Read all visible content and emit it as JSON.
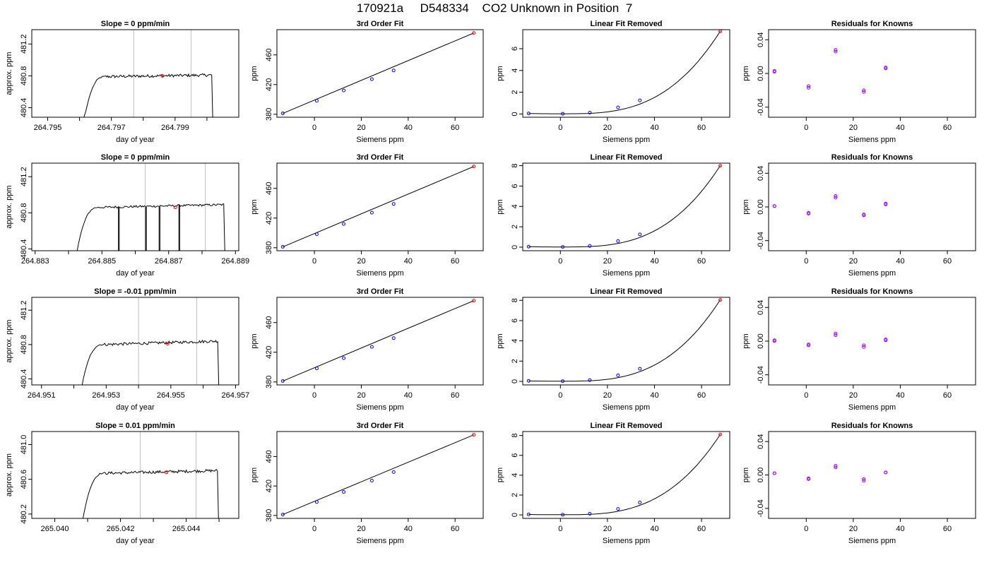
{
  "figure_title": "170921a     D548334    CO2 Unknown in Position  7",
  "colors": {
    "line": "#000000",
    "known_point": "#0000ff",
    "unknown_point": "#ff0000",
    "residual_point": "#9900ff",
    "window_line": "#bebebe"
  },
  "chart_data": [
    {
      "type": "line",
      "title": "Slope =  0  ppm/min",
      "xlabel": "day of year",
      "ylabel": "approx. ppm",
      "xlim": [
        264.7945,
        264.801
      ],
      "ylim": [
        480.28,
        481.38
      ],
      "xticks": [
        264.795,
        264.797,
        264.799
      ],
      "xtick_labels": [
        "264.795",
        "264.797",
        "264.799"
      ],
      "xticks_minor": [
        264.796,
        264.798,
        264.8
      ],
      "yticks": [
        480.4,
        480.8,
        481.2
      ],
      "ytick_labels": [
        "480.4",
        "480.8",
        "481.2"
      ],
      "window": [
        264.7977,
        264.7995
      ],
      "trace": {
        "x0": 264.7959,
        "x_rise": 264.7962,
        "x_plateau": 264.7968,
        "x_drop": 264.80015,
        "x1": 264.8002,
        "plateau_level": 480.79,
        "plateau_end": 480.81,
        "noise": 0.018,
        "dips": []
      },
      "marker": {
        "x": 264.7986,
        "y": 480.8
      }
    },
    {
      "type": "scatter",
      "title": "3rd Order Fit",
      "xlabel": "Siemens ppm",
      "ylabel": "ppm",
      "xlim": [
        -16,
        72
      ],
      "ylim": [
        376,
        494
      ],
      "xticks": [
        0,
        20,
        40,
        60
      ],
      "yticks": [
        380,
        420,
        460
      ],
      "knowns": {
        "x": [
          -13.5,
          1,
          12.5,
          24.5,
          33.8
        ],
        "y": [
          381.2,
          398.3,
          412.0,
          427.3,
          439.0
        ]
      },
      "unknown": {
        "x": 68,
        "y": 489.5
      },
      "fit": {
        "x": [
          -13.5,
          68
        ],
        "y": [
          381.2,
          489.5
        ]
      }
    },
    {
      "type": "scatter",
      "title": "Linear Fit Removed",
      "xlabel": "Siemens ppm",
      "ylabel": "ppm",
      "xlim": [
        -16,
        72
      ],
      "ylim": [
        -0.3,
        7.75
      ],
      "xticks": [
        0,
        20,
        40,
        60
      ],
      "yticks": [
        0,
        2,
        4,
        6
      ],
      "knowns": {
        "x": [
          -13.5,
          1,
          12.5,
          24.5,
          33.8
        ],
        "y": [
          0.05,
          0.02,
          0.12,
          0.6,
          1.25
        ]
      },
      "unknown": {
        "x": 68,
        "y": 7.6
      },
      "fit": {
        "x_start": -13.5,
        "x_end": 68,
        "y_start": 0.05,
        "y_end": 7.6,
        "x_min": 1
      }
    },
    {
      "type": "scatter",
      "title": "Residuals for Knowns",
      "xlabel": "Siemens ppm",
      "ylabel": "ppm",
      "xlim": [
        -16,
        72
      ],
      "ylim": [
        -0.052,
        0.052
      ],
      "xticks": [
        0,
        20,
        40,
        60
      ],
      "yticks": [
        -0.04,
        0.0,
        0.04
      ],
      "ytick_labels": [
        "-0.04",
        "0.00",
        "0.04"
      ],
      "points": {
        "x": [
          -13.5,
          -13.5,
          1,
          1,
          12.5,
          12.5,
          24.5,
          24.5,
          33.8,
          33.8
        ],
        "y": [
          0.003,
          0.002,
          -0.015,
          -0.017,
          0.028,
          0.026,
          -0.02,
          -0.022,
          0.007,
          0.006
        ]
      }
    },
    {
      "type": "line",
      "title": "Slope =  0  ppm/min",
      "xlabel": "day of year",
      "ylabel": "approx. ppm",
      "xlim": [
        264.8829,
        264.8891
      ],
      "ylim": [
        480.38,
        481.35
      ],
      "xticks": [
        264.883,
        264.885,
        264.887,
        264.889
      ],
      "xtick_labels": [
        "264.883",
        "264.885",
        "264.887",
        "264.889"
      ],
      "xticks_minor": [
        264.884,
        264.886,
        264.888
      ],
      "yticks": [
        480.4,
        480.8,
        481.2
      ],
      "ytick_labels": [
        "480.4",
        "480.8",
        "481.2"
      ],
      "window": [
        264.8863,
        264.8881
      ],
      "trace": {
        "x0": 264.8841,
        "x_rise": 264.8843,
        "x_plateau": 264.8849,
        "x_drop": 264.88865,
        "x1": 264.8887,
        "plateau_level": 480.86,
        "plateau_end": 480.89,
        "noise": 0.012,
        "dips": [
          264.8855,
          264.8863,
          264.8867,
          264.8873
        ]
      },
      "marker": {
        "x": 264.8872,
        "y": 480.86
      }
    },
    {
      "type": "scatter",
      "title": "3rd Order Fit",
      "xlabel": "Siemens ppm",
      "ylabel": "ppm",
      "xlim": [
        -16,
        72
      ],
      "ylim": [
        376,
        494
      ],
      "xticks": [
        0,
        20,
        40,
        60
      ],
      "yticks": [
        380,
        420,
        460
      ],
      "knowns": {
        "x": [
          -13.5,
          1,
          12.5,
          24.5,
          33.8
        ],
        "y": [
          381.2,
          398.3,
          412.0,
          427.3,
          439.0
        ]
      },
      "unknown": {
        "x": 68,
        "y": 489.5
      },
      "fit": {
        "x": [
          -13.5,
          68
        ],
        "y": [
          381.2,
          489.5
        ]
      }
    },
    {
      "type": "scatter",
      "title": "Linear Fit Removed",
      "xlabel": "Siemens ppm",
      "ylabel": "ppm",
      "xlim": [
        -16,
        72
      ],
      "ylim": [
        -0.35,
        8.25
      ],
      "xticks": [
        0,
        20,
        40,
        60
      ],
      "yticks": [
        0,
        2,
        4,
        6,
        8
      ],
      "knowns": {
        "x": [
          -13.5,
          1,
          12.5,
          24.5,
          33.8
        ],
        "y": [
          0.05,
          0.02,
          0.12,
          0.6,
          1.25
        ]
      },
      "unknown": {
        "x": 68,
        "y": 8.0
      },
      "fit": {
        "x_start": -13.5,
        "x_end": 68,
        "y_start": 0.05,
        "y_end": 8.0,
        "x_min": 1
      }
    },
    {
      "type": "scatter",
      "title": "Residuals for Knowns",
      "xlabel": "Siemens ppm",
      "ylabel": "ppm",
      "xlim": [
        -16,
        72
      ],
      "ylim": [
        -0.052,
        0.052
      ],
      "xticks": [
        0,
        20,
        40,
        60
      ],
      "yticks": [
        -0.04,
        0.0,
        0.04
      ],
      "ytick_labels": [
        "-0.04",
        "0.00",
        "0.04"
      ],
      "points": {
        "x": [
          -13.5,
          -13.5,
          1,
          1,
          12.5,
          12.5,
          24.5,
          24.5,
          33.8,
          33.8
        ],
        "y": [
          0.001,
          0.001,
          -0.007,
          -0.008,
          0.013,
          0.011,
          -0.009,
          -0.01,
          0.004,
          0.003
        ]
      }
    },
    {
      "type": "line",
      "title": "Slope =  -0.01  ppm/min",
      "xlabel": "day of year",
      "ylabel": "approx. ppm",
      "xlim": [
        264.9507,
        264.9571
      ],
      "ylim": [
        480.33,
        481.35
      ],
      "xticks": [
        264.951,
        264.953,
        264.955,
        264.957
      ],
      "xtick_labels": [
        "264.951",
        "264.953",
        "264.955",
        "264.957"
      ],
      "xticks_minor": [
        264.952,
        264.954,
        264.956
      ],
      "yticks": [
        480.4,
        480.8,
        481.2
      ],
      "ytick_labels": [
        "480.4",
        "480.8",
        "481.2"
      ],
      "window": [
        264.954,
        264.9558
      ],
      "trace": {
        "x0": 264.9521,
        "x_rise": 264.9523,
        "x_plateau": 264.9529,
        "x_drop": 264.95645,
        "x1": 264.9565,
        "plateau_level": 480.8,
        "plateau_end": 480.84,
        "noise": 0.016,
        "dips": []
      },
      "marker": {
        "x": 264.9549,
        "y": 480.81
      }
    },
    {
      "type": "scatter",
      "title": "3rd Order Fit",
      "xlabel": "Siemens ppm",
      "ylabel": "ppm",
      "xlim": [
        -16,
        72
      ],
      "ylim": [
        376,
        494
      ],
      "xticks": [
        0,
        20,
        40,
        60
      ],
      "yticks": [
        380,
        420,
        460
      ],
      "knowns": {
        "x": [
          -13.5,
          1,
          12.5,
          24.5,
          33.8
        ],
        "y": [
          381.2,
          398.3,
          412.0,
          427.3,
          439.0
        ]
      },
      "unknown": {
        "x": 68,
        "y": 489.5
      },
      "fit": {
        "x": [
          -13.5,
          68
        ],
        "y": [
          381.2,
          489.5
        ]
      }
    },
    {
      "type": "scatter",
      "title": "Linear Fit Removed",
      "xlabel": "Siemens ppm",
      "ylabel": "ppm",
      "xlim": [
        -16,
        72
      ],
      "ylim": [
        -0.35,
        8.3
      ],
      "xticks": [
        0,
        20,
        40,
        60
      ],
      "yticks": [
        0,
        2,
        4,
        6,
        8
      ],
      "knowns": {
        "x": [
          -13.5,
          1,
          12.5,
          24.5,
          33.8
        ],
        "y": [
          0.05,
          0.02,
          0.12,
          0.6,
          1.25
        ]
      },
      "unknown": {
        "x": 68,
        "y": 8.05
      },
      "fit": {
        "x_start": -13.5,
        "x_end": 68,
        "y_start": 0.05,
        "y_end": 8.05,
        "x_min": 1
      }
    },
    {
      "type": "scatter",
      "title": "Residuals for Knowns",
      "xlabel": "Siemens ppm",
      "ylabel": "ppm",
      "xlim": [
        -16,
        72
      ],
      "ylim": [
        -0.052,
        0.052
      ],
      "xticks": [
        0,
        20,
        40,
        60
      ],
      "yticks": [
        -0.04,
        0.0,
        0.04
      ],
      "ytick_labels": [
        "-0.04",
        "0.00",
        "0.04"
      ],
      "points": {
        "x": [
          -13.5,
          -13.5,
          1,
          1,
          12.5,
          12.5,
          24.5,
          24.5,
          33.8,
          33.8
        ],
        "y": [
          0.0,
          0.001,
          -0.004,
          -0.005,
          0.009,
          0.007,
          -0.005,
          -0.007,
          0.002,
          0.001
        ]
      }
    },
    {
      "type": "line",
      "title": "Slope =  0.01  ppm/min",
      "xlabel": "day of year",
      "ylabel": "approx. ppm",
      "xlim": [
        265.0393,
        265.0456
      ],
      "ylim": [
        480.15,
        481.15
      ],
      "xticks": [
        265.04,
        265.042,
        265.044
      ],
      "xtick_labels": [
        "265.040",
        "265.042",
        "265.044"
      ],
      "xticks_minor": [
        265.041,
        265.043,
        265.045
      ],
      "yticks": [
        480.2,
        480.6,
        481.0
      ],
      "ytick_labels": [
        "480.2",
        "480.6",
        "481.0"
      ],
      "window": [
        265.0426,
        265.0443
      ],
      "trace": {
        "x0": 265.0407,
        "x_rise": 265.0409,
        "x_plateau": 265.0415,
        "x_drop": 265.04495,
        "x1": 265.045,
        "plateau_level": 480.67,
        "plateau_end": 480.7,
        "noise": 0.016,
        "dips": []
      },
      "marker": {
        "x": 265.0434,
        "y": 480.68
      }
    },
    {
      "type": "scatter",
      "title": "3rd Order Fit",
      "xlabel": "Siemens ppm",
      "ylabel": "ppm",
      "xlim": [
        -16,
        72
      ],
      "ylim": [
        376,
        494
      ],
      "xticks": [
        0,
        20,
        40,
        60
      ],
      "yticks": [
        380,
        420,
        460
      ],
      "knowns": {
        "x": [
          -13.5,
          1,
          12.5,
          24.5,
          33.8
        ],
        "y": [
          381.2,
          398.3,
          412.0,
          427.3,
          439.0
        ]
      },
      "unknown": {
        "x": 68,
        "y": 489.5
      },
      "fit": {
        "x": [
          -13.5,
          68
        ],
        "y": [
          381.2,
          489.5
        ]
      }
    },
    {
      "type": "scatter",
      "title": "Linear Fit Removed",
      "xlabel": "Siemens ppm",
      "ylabel": "ppm",
      "xlim": [
        -16,
        72
      ],
      "ylim": [
        -0.35,
        8.4
      ],
      "xticks": [
        0,
        20,
        40,
        60
      ],
      "yticks": [
        0,
        2,
        4,
        6,
        8
      ],
      "knowns": {
        "x": [
          -13.5,
          1,
          12.5,
          24.5,
          33.8
        ],
        "y": [
          0.05,
          0.02,
          0.12,
          0.6,
          1.25
        ]
      },
      "unknown": {
        "x": 68,
        "y": 8.1
      },
      "fit": {
        "x_start": -13.5,
        "x_end": 68,
        "y_start": 0.05,
        "y_end": 8.1,
        "x_min": 1
      }
    },
    {
      "type": "scatter",
      "title": "Residuals for Knowns",
      "xlabel": "Siemens ppm",
      "ylabel": "ppm",
      "xlim": [
        -16,
        72
      ],
      "ylim": [
        -0.052,
        0.052
      ],
      "xticks": [
        0,
        20,
        40,
        60
      ],
      "yticks": [
        -0.04,
        0.0,
        0.04
      ],
      "ytick_labels": [
        "-0.04",
        "0.00",
        "0.04"
      ],
      "points": {
        "x": [
          -13.5,
          -13.5,
          1,
          1,
          12.5,
          12.5,
          24.5,
          24.5,
          33.8,
          33.8
        ],
        "y": [
          0.002,
          0.002,
          -0.004,
          -0.005,
          0.011,
          0.009,
          -0.005,
          -0.007,
          0.003,
          0.003
        ]
      }
    }
  ]
}
